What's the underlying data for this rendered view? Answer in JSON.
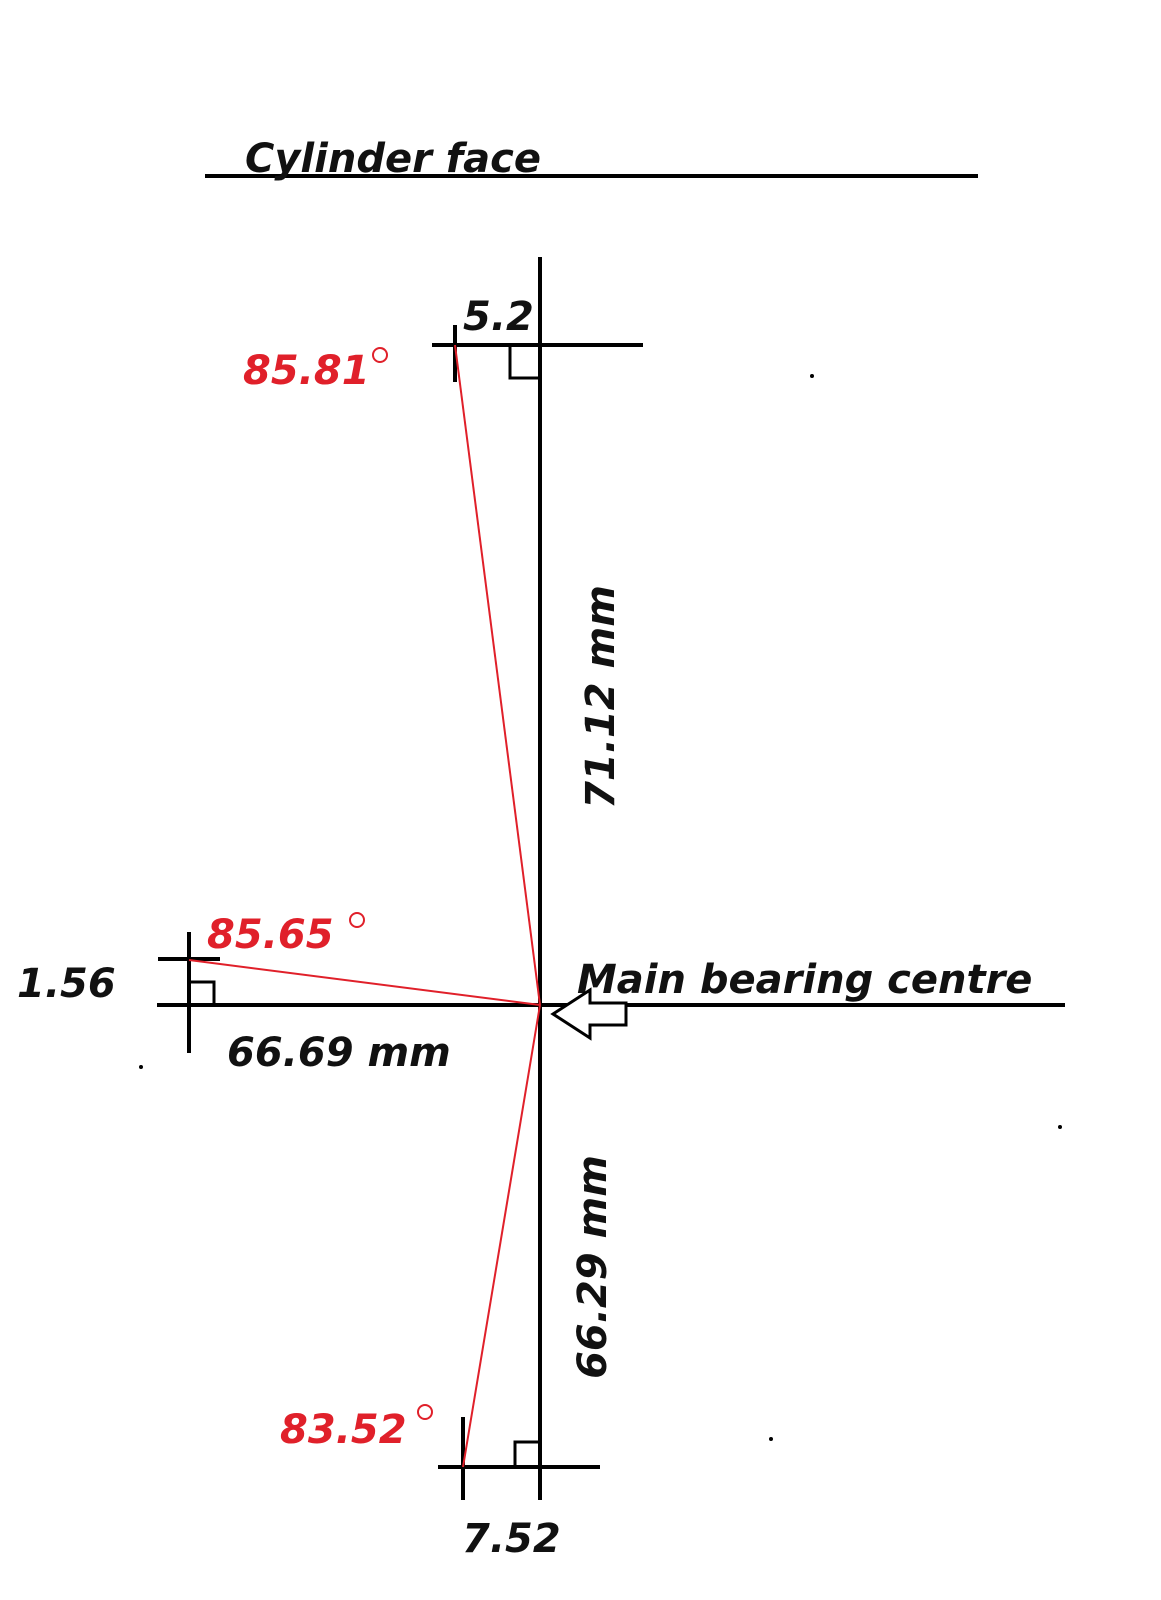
{
  "title": "Cylinder face",
  "reference_label": "Main bearing centre",
  "colors": {
    "lines": "#000000",
    "angle_lines": "#e0202a",
    "angle_text": "#e0202a"
  },
  "top": {
    "offset": "5.2",
    "angle": "85.81",
    "distance": "71.12 mm"
  },
  "left": {
    "offset": "1.56",
    "angle": "85.65",
    "distance": "66.69 mm"
  },
  "bottom": {
    "offset": "7.52",
    "angle": "83.52",
    "distance": "66.29 mm"
  },
  "icons": {
    "degree": "circle",
    "arrow": "arrow-left-outline",
    "right_angle": "square-corner"
  }
}
